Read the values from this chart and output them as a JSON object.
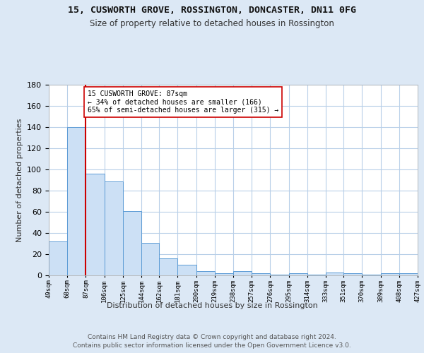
{
  "title1": "15, CUSWORTH GROVE, ROSSINGTON, DONCASTER, DN11 0FG",
  "title2": "Size of property relative to detached houses in Rossington",
  "xlabel": "Distribution of detached houses by size in Rossington",
  "ylabel": "Number of detached properties",
  "bar_values": [
    32,
    140,
    96,
    89,
    61,
    31,
    16,
    10,
    4,
    2,
    4,
    2,
    1,
    2,
    1,
    3,
    2,
    1,
    2,
    2
  ],
  "bar_labels": [
    "49sqm",
    "68sqm",
    "87sqm",
    "106sqm",
    "125sqm",
    "144sqm",
    "162sqm",
    "181sqm",
    "200sqm",
    "219sqm",
    "238sqm",
    "257sqm",
    "276sqm",
    "295sqm",
    "314sqm",
    "333sqm",
    "351sqm",
    "370sqm",
    "389sqm",
    "408sqm",
    "427sqm"
  ],
  "bar_edges": [
    49,
    68,
    87,
    106,
    125,
    144,
    162,
    181,
    200,
    219,
    238,
    257,
    276,
    295,
    314,
    333,
    351,
    370,
    389,
    408,
    427
  ],
  "property_size": 87,
  "red_line_x": 87,
  "annotation_text": "15 CUSWORTH GROVE: 87sqm\n← 34% of detached houses are smaller (166)\n65% of semi-detached houses are larger (315) →",
  "bar_color": "#cce0f5",
  "bar_edge_color": "#5b9bd5",
  "red_line_color": "#cc0000",
  "bg_color": "#dce8f5",
  "plot_bg_color": "#ffffff",
  "grid_color": "#b8cfe8",
  "annotation_box_color": "#ffffff",
  "annotation_box_edge": "#cc0000",
  "ylim": [
    0,
    180
  ],
  "yticks": [
    0,
    20,
    40,
    60,
    80,
    100,
    120,
    140,
    160,
    180
  ],
  "footer": "Contains HM Land Registry data © Crown copyright and database right 2024.\nContains public sector information licensed under the Open Government Licence v3.0."
}
